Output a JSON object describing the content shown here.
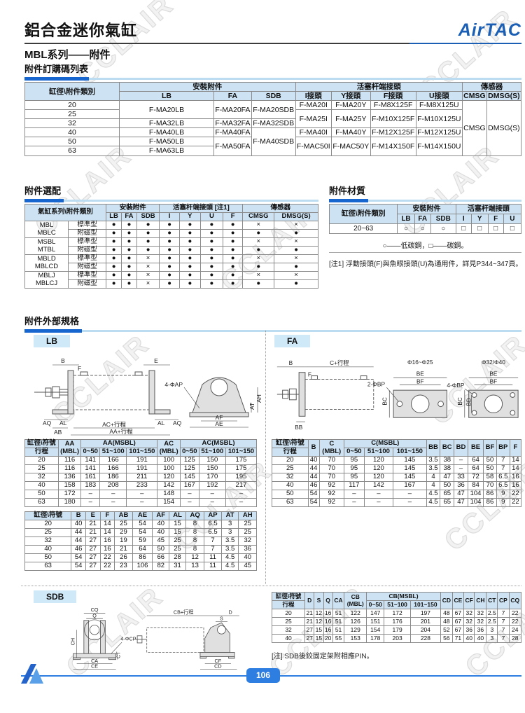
{
  "header": {
    "title": "鋁合金迷你氣缸",
    "subtitle": "MBL系列——附件",
    "brand": "AirTAC"
  },
  "footer": {
    "page_number": "106"
  },
  "watermark": "CCLAIR",
  "colors": {
    "accent": "#1766cf",
    "bar_light": "#bcdcf2",
    "table_header_bg": "#cde3f3",
    "brand_blue": "#1b5fb5"
  },
  "sections": {
    "ordering": "附件訂購碼列表",
    "selection": "附件選配",
    "material": "附件材質",
    "dimensions": "附件外部規格",
    "lb": "LB",
    "fa": "FA",
    "sdb": "SDB"
  },
  "notes": {
    "material_legend": "○——低碳鋼，□——碳鋼。",
    "note1": "[注1] 浮動接頭(F)與魚眼接頭(U)為通用件，詳見P344~347頁。",
    "sdb_note": "[注] SDB後鉸固定架附相應PIN。"
  },
  "tables": {
    "ordering": {
      "head": [
        [
          {
            "t": "缸徑\\附件類別",
            "rs": 2
          },
          {
            "t": "安裝附件",
            "cs": 3
          },
          {
            "t": "活塞杆端接頭",
            "cs": 4
          },
          {
            "t": "傳感器",
            "cs": 2
          }
        ],
        [
          "LB",
          "FA",
          "SDB",
          "I接頭",
          "Y接頭",
          "F接頭",
          "U接頭",
          "CMSG",
          "DMSG(S)"
        ]
      ],
      "body": [
        [
          "20",
          {
            "t": "F-MA20LB",
            "rs": 2
          },
          {
            "t": "F-MA20FA",
            "rs": 2
          },
          {
            "t": "F-MA20SDB",
            "rs": 2
          },
          "F-MA20I",
          "F-MA20Y",
          "F-M8X125F",
          "F-M8X125U",
          {
            "t": "CMSG",
            "rs": 6
          },
          {
            "t": "DMSG(S)",
            "rs": 6
          }
        ],
        [
          "25",
          {
            "t": "F-MA25I",
            "rs": 2
          },
          {
            "t": "F-MA25Y",
            "rs": 2
          },
          {
            "t": "F-M10X125F",
            "rs": 2
          },
          {
            "t": "F-M10X125U",
            "rs": 2
          }
        ],
        [
          "32",
          "F-MA32LB",
          "F-MA32FA",
          "F-MA32SDB"
        ],
        [
          "40",
          "F-MA40LB",
          "F-MA40FA",
          {
            "t": "F-MA40SDB",
            "rs": 3
          },
          "F-MA40I",
          "F-MA40Y",
          "F-M12X125F",
          "F-M12X125U"
        ],
        [
          "50",
          "F-MA50LB",
          {
            "t": "F-MA50FA",
            "rs": 2
          },
          {
            "t": "F-MAC50I",
            "rs": 2
          },
          {
            "t": "F-MAC50Y",
            "rs": 2
          },
          {
            "t": "F-M14X150F",
            "rs": 2
          },
          {
            "t": "F-M14X150U",
            "rs": 2
          }
        ],
        [
          "63",
          "F-MA63LB"
        ]
      ]
    },
    "selection": {
      "head": [
        [
          {
            "t": "氣缸系列\\附件類別",
            "cs": 2,
            "rs": 2
          },
          {
            "t": "安裝附件",
            "cs": 3
          },
          {
            "t": "活塞杆端接頭 [注1]",
            "cs": 4
          },
          {
            "t": "傳感器",
            "cs": 2
          }
        ],
        [
          "LB",
          "FA",
          "SDB",
          "I",
          "Y",
          "U",
          "F",
          "CMSG",
          "DMSG(S)"
        ]
      ],
      "body": [
        [
          {
            "t": "MBL\nMBLC",
            "rs": 2
          },
          "標準型",
          "●",
          "●",
          "●",
          "●",
          "●",
          "●",
          "●",
          "×",
          "×"
        ],
        [
          "附磁型",
          "●",
          "●",
          "●",
          "●",
          "●",
          "●",
          "●",
          "●",
          "●"
        ],
        [
          {
            "t": "MSBL\nMTBL",
            "rs": 2
          },
          "標準型",
          "●",
          "●",
          "●",
          "●",
          "●",
          "●",
          "●",
          "×",
          "×"
        ],
        [
          "附磁型",
          "●",
          "●",
          "●",
          "●",
          "●",
          "●",
          "●",
          "●",
          "●"
        ],
        [
          {
            "t": "MBLD\nMBLCD",
            "rs": 2
          },
          "標準型",
          "●",
          "●",
          "×",
          "●",
          "●",
          "●",
          "●",
          "×",
          "×"
        ],
        [
          "附磁型",
          "●",
          "●",
          "×",
          "●",
          "●",
          "●",
          "●",
          "●",
          "●"
        ],
        [
          {
            "t": "MBLJ\nMBLCJ",
            "rs": 2
          },
          "標準型",
          "●",
          "●",
          "×",
          "●",
          "●",
          "●",
          "●",
          "×",
          "×"
        ],
        [
          "附磁型",
          "●",
          "●",
          "×",
          "●",
          "●",
          "●",
          "●",
          "●",
          "●"
        ]
      ]
    },
    "material": {
      "head": [
        [
          {
            "t": "缸徑\\附件類別",
            "rs": 2
          },
          {
            "t": "安裝附件",
            "cs": 3
          },
          {
            "t": "活塞杆端接頭",
            "cs": 4
          }
        ],
        [
          "LB",
          "FA",
          "SDB",
          "I",
          "Y",
          "F",
          "U"
        ]
      ],
      "body": [
        [
          "20~63",
          "○",
          "○",
          "○",
          "□",
          "□",
          "□",
          "□"
        ]
      ]
    },
    "lb1": {
      "head": [
        [
          "缸徑\\符號",
          {
            "t": "AA\n(MBL)",
            "rs": 2
          },
          {
            "t": "AA(MSBL)",
            "cs": 3
          },
          {
            "t": "AC\n(MBL)",
            "rs": 2
          },
          {
            "t": "AC(MSBL)",
            "cs": 3
          }
        ],
        [
          "行程",
          "0~50",
          "51~100",
          "101~150",
          "0~50",
          "51~100",
          "101~150"
        ]
      ],
      "body": [
        [
          "20",
          "116",
          "141",
          "166",
          "191",
          "100",
          "125",
          "150",
          "175"
        ],
        [
          "25",
          "116",
          "141",
          "166",
          "191",
          "100",
          "125",
          "150",
          "175"
        ],
        [
          "32",
          "136",
          "161",
          "186",
          "211",
          "120",
          "145",
          "170",
          "195"
        ],
        [
          "40",
          "158",
          "183",
          "208",
          "233",
          "142",
          "167",
          "192",
          "217"
        ],
        [
          "50",
          "172",
          "–",
          "–",
          "–",
          "148",
          "–",
          "–",
          "–"
        ],
        [
          "63",
          "180",
          "–",
          "–",
          "–",
          "154",
          "–",
          "–",
          "–"
        ]
      ]
    },
    "lb2": {
      "head": [
        [
          "缸徑\\符號",
          "B",
          "E",
          "F",
          "AB",
          "AE",
          "AF",
          "AL",
          "AQ",
          "AP",
          "AT",
          "AH"
        ]
      ],
      "body": [
        [
          "20",
          "40",
          "21",
          "14",
          "25",
          "54",
          "40",
          "15",
          "8",
          "6.5",
          "3",
          "25"
        ],
        [
          "25",
          "44",
          "21",
          "14",
          "29",
          "54",
          "40",
          "15",
          "8",
          "6.5",
          "3",
          "25"
        ],
        [
          "32",
          "44",
          "27",
          "16",
          "19",
          "59",
          "45",
          "25",
          "8",
          "7",
          "3.5",
          "32"
        ],
        [
          "40",
          "46",
          "27",
          "16",
          "21",
          "64",
          "50",
          "25",
          "8",
          "7",
          "3.5",
          "36"
        ],
        [
          "50",
          "54",
          "27",
          "22",
          "26",
          "86",
          "66",
          "28",
          "12",
          "11",
          "4.5",
          "40"
        ],
        [
          "63",
          "54",
          "27",
          "22",
          "23",
          "106",
          "82",
          "31",
          "13",
          "11",
          "4.5",
          "45"
        ]
      ]
    },
    "fa": {
      "head": [
        [
          "缸徑\\符號",
          {
            "t": "B",
            "rs": 2
          },
          {
            "t": "C\n(MBL)",
            "rs": 2
          },
          {
            "t": "C(MSBL)",
            "cs": 3
          },
          {
            "t": "BB",
            "rs": 2
          },
          {
            "t": "BC",
            "rs": 2
          },
          {
            "t": "BD",
            "rs": 2
          },
          {
            "t": "BE",
            "rs": 2
          },
          {
            "t": "BF",
            "rs": 2
          },
          {
            "t": "BP",
            "rs": 2
          },
          {
            "t": "F",
            "rs": 2
          }
        ],
        [
          "行程",
          "0~50",
          "51~100",
          "101~150"
        ]
      ],
      "body": [
        [
          "20",
          "40",
          "70",
          "95",
          "120",
          "145",
          "3.5",
          "38",
          "–",
          "64",
          "50",
          "7",
          "14"
        ],
        [
          "25",
          "44",
          "70",
          "95",
          "120",
          "145",
          "3.5",
          "38",
          "–",
          "64",
          "50",
          "7",
          "14"
        ],
        [
          "32",
          "44",
          "70",
          "95",
          "120",
          "145",
          "4",
          "47",
          "33",
          "72",
          "58",
          "6.5",
          "16"
        ],
        [
          "40",
          "46",
          "92",
          "117",
          "142",
          "167",
          "4",
          "50",
          "36",
          "84",
          "70",
          "6.5",
          "16"
        ],
        [
          "50",
          "54",
          "92",
          "–",
          "–",
          "–",
          "4.5",
          "65",
          "47",
          "104",
          "86",
          "9",
          "22"
        ],
        [
          "63",
          "54",
          "92",
          "–",
          "–",
          "–",
          "4.5",
          "65",
          "47",
          "104",
          "86",
          "9",
          "22"
        ]
      ]
    },
    "sdb": {
      "head": [
        [
          "缸徑\\符號",
          {
            "t": "D",
            "rs": 2
          },
          {
            "t": "S",
            "rs": 2
          },
          {
            "t": "Q",
            "rs": 2
          },
          {
            "t": "CA",
            "rs": 2
          },
          {
            "t": "CB\n(MBL)",
            "rs": 2
          },
          {
            "t": "CB(MSBL)",
            "cs": 3
          },
          {
            "t": "CD",
            "rs": 2
          },
          {
            "t": "CE",
            "rs": 2
          },
          {
            "t": "CF",
            "rs": 2
          },
          {
            "t": "CH",
            "rs": 2
          },
          {
            "t": "CT",
            "rs": 2
          },
          {
            "t": "CP",
            "rs": 2
          },
          {
            "t": "CQ",
            "rs": 2
          }
        ],
        [
          "行程",
          "0~50",
          "51~100",
          "101~150"
        ]
      ],
      "body": [
        [
          "20",
          "21",
          "12",
          "16",
          "51",
          "122",
          "147",
          "172",
          "197",
          "48",
          "67",
          "32",
          "32",
          "2.5",
          "7",
          "22"
        ],
        [
          "25",
          "21",
          "12",
          "16",
          "51",
          "126",
          "151",
          "176",
          "201",
          "48",
          "67",
          "32",
          "32",
          "2.5",
          "7",
          "22"
        ],
        [
          "32",
          "27",
          "15",
          "16",
          "51",
          "129",
          "154",
          "179",
          "204",
          "52",
          "67",
          "36",
          "36",
          "3",
          "7",
          "24"
        ],
        [
          "40",
          "27",
          "15",
          "20",
          "55",
          "153",
          "178",
          "203",
          "228",
          "56",
          "71",
          "40",
          "40",
          "3",
          "7",
          "28"
        ]
      ]
    }
  },
  "drawings": {
    "lb": {
      "b": "B",
      "f": "F",
      "e": "E",
      "aq": "AQ",
      "al": "AL",
      "ab": "AB",
      "ac": "AC+行程",
      "aa": "AA+行程",
      "hole": "4-ΦAP",
      "af": "AF",
      "ae": "AE",
      "at": "AT",
      "ah": "AH"
    },
    "fa": {
      "b": "B",
      "c": "C+行程",
      "f": "F",
      "bb": "BB",
      "p1": "Φ16~Φ25",
      "p1hole": "2-ΦBP",
      "p2": "Φ32/Φ40",
      "p2hole": "4-ΦBP",
      "be": "BE",
      "bf": "BF",
      "bc": "BC",
      "bd": "BD"
    },
    "sdb": {
      "cq": "CQ",
      "q": "Q",
      "ch": "CH",
      "hole": "4-ΦCP",
      "ct": "CT",
      "ca": "CA",
      "ce": "CE",
      "cb": "CB+行程",
      "d": "D",
      "s": "S",
      "cf": "CF",
      "cd": "CD"
    }
  }
}
